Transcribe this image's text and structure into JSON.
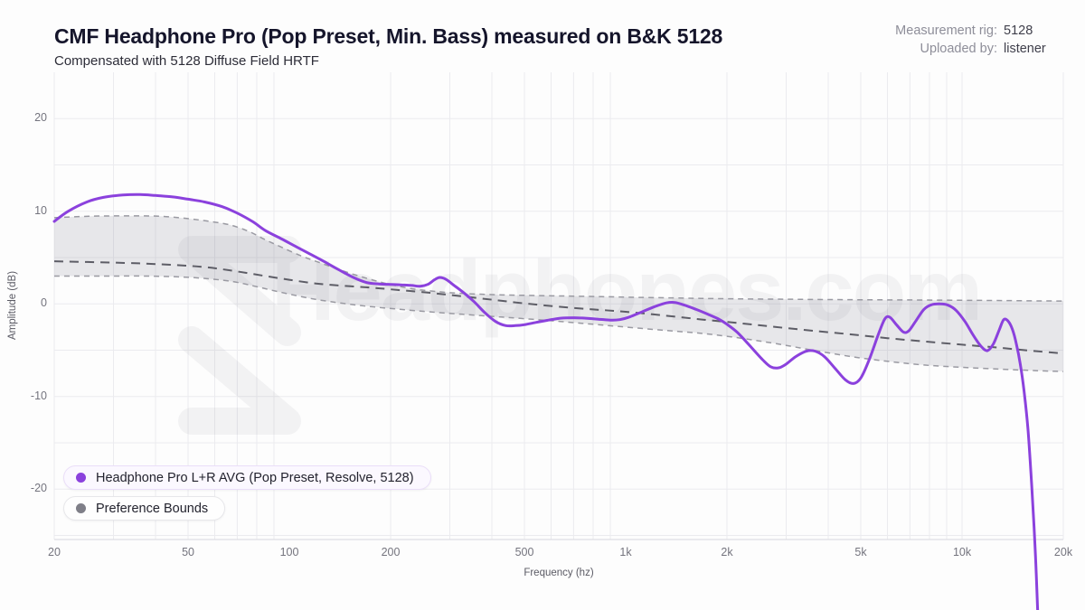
{
  "header": {
    "title": "CMF Headphone Pro (Pop Preset, Min. Bass) measured on B&K 5128",
    "subtitle": "Compensated with 5128 Diffuse Field HRTF",
    "meta": [
      {
        "label": "Measurement rig:",
        "value": "5128"
      },
      {
        "label": "Uploaded by:",
        "value": "listener"
      }
    ]
  },
  "watermark": {
    "text": "Headphones.com",
    "logo": "headphones-com-logo"
  },
  "legend": [
    {
      "label": "Headphone Pro L+R AVG (Pop Preset, Resolve, 5128)",
      "color": "#8b41dd"
    },
    {
      "label": "Preference Bounds",
      "color": "#7f7f88"
    }
  ],
  "colors": {
    "curve": "#8b41dd",
    "band_fill": "rgba(110,110,125,0.15)",
    "bound_dash": "#9a9aa2",
    "target_dash": "#5d5d66",
    "grid": "#ebebef",
    "axis_line": "#d8d8de"
  },
  "chart_data": {
    "type": "line",
    "title": "CMF Headphone Pro (Pop Preset, Min. Bass) measured on B&K 5128",
    "xlabel": "Frequency (hz)",
    "ylabel": "Amplitude (dB)",
    "x_scale": "log",
    "xlim": [
      20,
      20000
    ],
    "ylim": [
      -25,
      25
    ],
    "grid": true,
    "grid_step_db": 5,
    "legend_position": "bottom-left",
    "x_ticks": [
      {
        "value": 20,
        "label": "20"
      },
      {
        "value": 50,
        "label": "50"
      },
      {
        "value": 100,
        "label": "100"
      },
      {
        "value": 200,
        "label": "200"
      },
      {
        "value": 500,
        "label": "500"
      },
      {
        "value": 1000,
        "label": "1k"
      },
      {
        "value": 2000,
        "label": "2k"
      },
      {
        "value": 5000,
        "label": "5k"
      },
      {
        "value": 10000,
        "label": "10k"
      },
      {
        "value": 20000,
        "label": "20k"
      }
    ],
    "y_ticks": [
      {
        "value": 20,
        "label": "20"
      },
      {
        "value": 10,
        "label": "10"
      },
      {
        "value": 0,
        "label": "0"
      },
      {
        "value": -10,
        "label": "-10"
      },
      {
        "value": -20,
        "label": "-20"
      }
    ],
    "series": [
      {
        "name": "Headphone Pro L+R AVG (Pop Preset, Resolve, 5128)",
        "role": "main",
        "color": "#8b41dd",
        "points": [
          [
            20,
            8.9
          ],
          [
            22,
            10.0
          ],
          [
            25,
            11.0
          ],
          [
            28,
            11.5
          ],
          [
            32,
            11.75
          ],
          [
            36,
            11.8
          ],
          [
            40,
            11.7
          ],
          [
            45,
            11.55
          ],
          [
            50,
            11.3
          ],
          [
            56,
            11.0
          ],
          [
            63,
            10.5
          ],
          [
            70,
            9.8
          ],
          [
            78,
            8.85
          ],
          [
            85,
            7.9
          ],
          [
            95,
            7.0
          ],
          [
            105,
            6.15
          ],
          [
            115,
            5.4
          ],
          [
            125,
            4.7
          ],
          [
            140,
            3.7
          ],
          [
            155,
            2.85
          ],
          [
            170,
            2.3
          ],
          [
            185,
            2.15
          ],
          [
            200,
            2.1
          ],
          [
            215,
            2.05
          ],
          [
            230,
            2.0
          ],
          [
            245,
            1.9
          ],
          [
            258,
            2.1
          ],
          [
            270,
            2.6
          ],
          [
            280,
            2.85
          ],
          [
            292,
            2.65
          ],
          [
            310,
            1.95
          ],
          [
            330,
            1.2
          ],
          [
            355,
            0.2
          ],
          [
            380,
            -0.9
          ],
          [
            410,
            -1.9
          ],
          [
            440,
            -2.35
          ],
          [
            470,
            -2.35
          ],
          [
            500,
            -2.25
          ],
          [
            540,
            -2.0
          ],
          [
            590,
            -1.75
          ],
          [
            640,
            -1.55
          ],
          [
            700,
            -1.5
          ],
          [
            760,
            -1.55
          ],
          [
            830,
            -1.65
          ],
          [
            900,
            -1.75
          ],
          [
            960,
            -1.7
          ],
          [
            1030,
            -1.4
          ],
          [
            1120,
            -0.85
          ],
          [
            1220,
            -0.3
          ],
          [
            1320,
            0.1
          ],
          [
            1400,
            0.15
          ],
          [
            1500,
            -0.15
          ],
          [
            1620,
            -0.6
          ],
          [
            1750,
            -1.1
          ],
          [
            1880,
            -1.6
          ],
          [
            2000,
            -2.2
          ],
          [
            2150,
            -3.1
          ],
          [
            2350,
            -4.6
          ],
          [
            2550,
            -6.0
          ],
          [
            2700,
            -6.8
          ],
          [
            2850,
            -6.9
          ],
          [
            3000,
            -6.5
          ],
          [
            3200,
            -5.7
          ],
          [
            3450,
            -5.1
          ],
          [
            3650,
            -5.1
          ],
          [
            3900,
            -5.7
          ],
          [
            4200,
            -7.0
          ],
          [
            4500,
            -8.2
          ],
          [
            4750,
            -8.6
          ],
          [
            5000,
            -8.0
          ],
          [
            5300,
            -6.0
          ],
          [
            5650,
            -3.2
          ],
          [
            5900,
            -1.6
          ],
          [
            6100,
            -1.45
          ],
          [
            6400,
            -2.3
          ],
          [
            6700,
            -3.05
          ],
          [
            6950,
            -2.9
          ],
          [
            7300,
            -1.8
          ],
          [
            7700,
            -0.6
          ],
          [
            8100,
            -0.1
          ],
          [
            8600,
            0.0
          ],
          [
            9100,
            -0.15
          ],
          [
            9600,
            -0.7
          ],
          [
            10200,
            -1.9
          ],
          [
            10800,
            -3.4
          ],
          [
            11400,
            -4.6
          ],
          [
            11900,
            -5.05
          ],
          [
            12400,
            -4.3
          ],
          [
            12900,
            -2.8
          ],
          [
            13300,
            -1.7
          ],
          [
            13700,
            -1.85
          ],
          [
            14100,
            -2.7
          ],
          [
            14500,
            -4.3
          ],
          [
            14900,
            -6.5
          ],
          [
            15300,
            -9.5
          ],
          [
            15700,
            -13.5
          ],
          [
            16100,
            -19.5
          ],
          [
            16500,
            -26.5
          ],
          [
            16800,
            -33.5
          ]
        ]
      },
      {
        "name": "Preference Bounds (upper)",
        "role": "bound-upper",
        "color": "#9a9aa2",
        "points": [
          [
            20,
            9.3
          ],
          [
            25,
            9.45
          ],
          [
            30,
            9.5
          ],
          [
            36,
            9.5
          ],
          [
            42,
            9.45
          ],
          [
            50,
            9.2
          ],
          [
            58,
            8.9
          ],
          [
            67,
            8.5
          ],
          [
            76,
            7.8
          ],
          [
            85,
            6.9
          ],
          [
            95,
            6.1
          ],
          [
            108,
            5.2
          ],
          [
            122,
            4.5
          ],
          [
            138,
            3.8
          ],
          [
            158,
            3.1
          ],
          [
            180,
            2.5
          ],
          [
            205,
            2.0
          ],
          [
            235,
            1.6
          ],
          [
            270,
            1.35
          ],
          [
            320,
            1.15
          ],
          [
            400,
            1.0
          ],
          [
            500,
            0.92
          ],
          [
            650,
            0.85
          ],
          [
            850,
            0.78
          ],
          [
            1100,
            0.7
          ],
          [
            1500,
            0.62
          ],
          [
            2000,
            0.55
          ],
          [
            3000,
            0.5
          ],
          [
            4500,
            0.45
          ],
          [
            7000,
            0.42
          ],
          [
            11000,
            0.38
          ],
          [
            16000,
            0.33
          ],
          [
            20000,
            0.3
          ]
        ]
      },
      {
        "name": "Preference Bounds (target)",
        "role": "bound-center",
        "color": "#5d5d66",
        "points": [
          [
            20,
            4.6
          ],
          [
            30,
            4.45
          ],
          [
            40,
            4.3
          ],
          [
            55,
            4.0
          ],
          [
            70,
            3.5
          ],
          [
            85,
            3.0
          ],
          [
            100,
            2.6
          ],
          [
            120,
            2.2
          ],
          [
            145,
            1.95
          ],
          [
            175,
            1.75
          ],
          [
            210,
            1.5
          ],
          [
            260,
            1.2
          ],
          [
            320,
            0.85
          ],
          [
            400,
            0.45
          ],
          [
            500,
            0.05
          ],
          [
            630,
            -0.3
          ],
          [
            800,
            -0.6
          ],
          [
            1000,
            -0.85
          ],
          [
            1300,
            -1.25
          ],
          [
            1700,
            -1.7
          ],
          [
            2200,
            -2.1
          ],
          [
            2800,
            -2.5
          ],
          [
            3600,
            -2.9
          ],
          [
            4700,
            -3.3
          ],
          [
            6000,
            -3.7
          ],
          [
            7700,
            -4.05
          ],
          [
            10000,
            -4.4
          ],
          [
            13000,
            -4.75
          ],
          [
            16500,
            -5.1
          ],
          [
            20000,
            -5.35
          ]
        ]
      },
      {
        "name": "Preference Bounds (lower)",
        "role": "bound-lower",
        "color": "#9a9aa2",
        "points": [
          [
            20,
            3.0
          ],
          [
            28,
            3.0
          ],
          [
            38,
            3.0
          ],
          [
            48,
            2.9
          ],
          [
            58,
            2.7
          ],
          [
            68,
            2.4
          ],
          [
            78,
            1.95
          ],
          [
            88,
            1.5
          ],
          [
            100,
            1.05
          ],
          [
            115,
            0.6
          ],
          [
            132,
            0.25
          ],
          [
            152,
            -0.05
          ],
          [
            180,
            -0.35
          ],
          [
            215,
            -0.6
          ],
          [
            260,
            -0.85
          ],
          [
            320,
            -1.1
          ],
          [
            400,
            -1.35
          ],
          [
            500,
            -1.6
          ],
          [
            640,
            -1.9
          ],
          [
            800,
            -2.2
          ],
          [
            1000,
            -2.5
          ],
          [
            1300,
            -2.85
          ],
          [
            1700,
            -3.2
          ],
          [
            2200,
            -3.7
          ],
          [
            2800,
            -4.3
          ],
          [
            3600,
            -5.0
          ],
          [
            4700,
            -5.7
          ],
          [
            6000,
            -6.2
          ],
          [
            7700,
            -6.6
          ],
          [
            10000,
            -6.85
          ],
          [
            13000,
            -7.05
          ],
          [
            16500,
            -7.2
          ],
          [
            20000,
            -7.3
          ]
        ]
      }
    ]
  }
}
